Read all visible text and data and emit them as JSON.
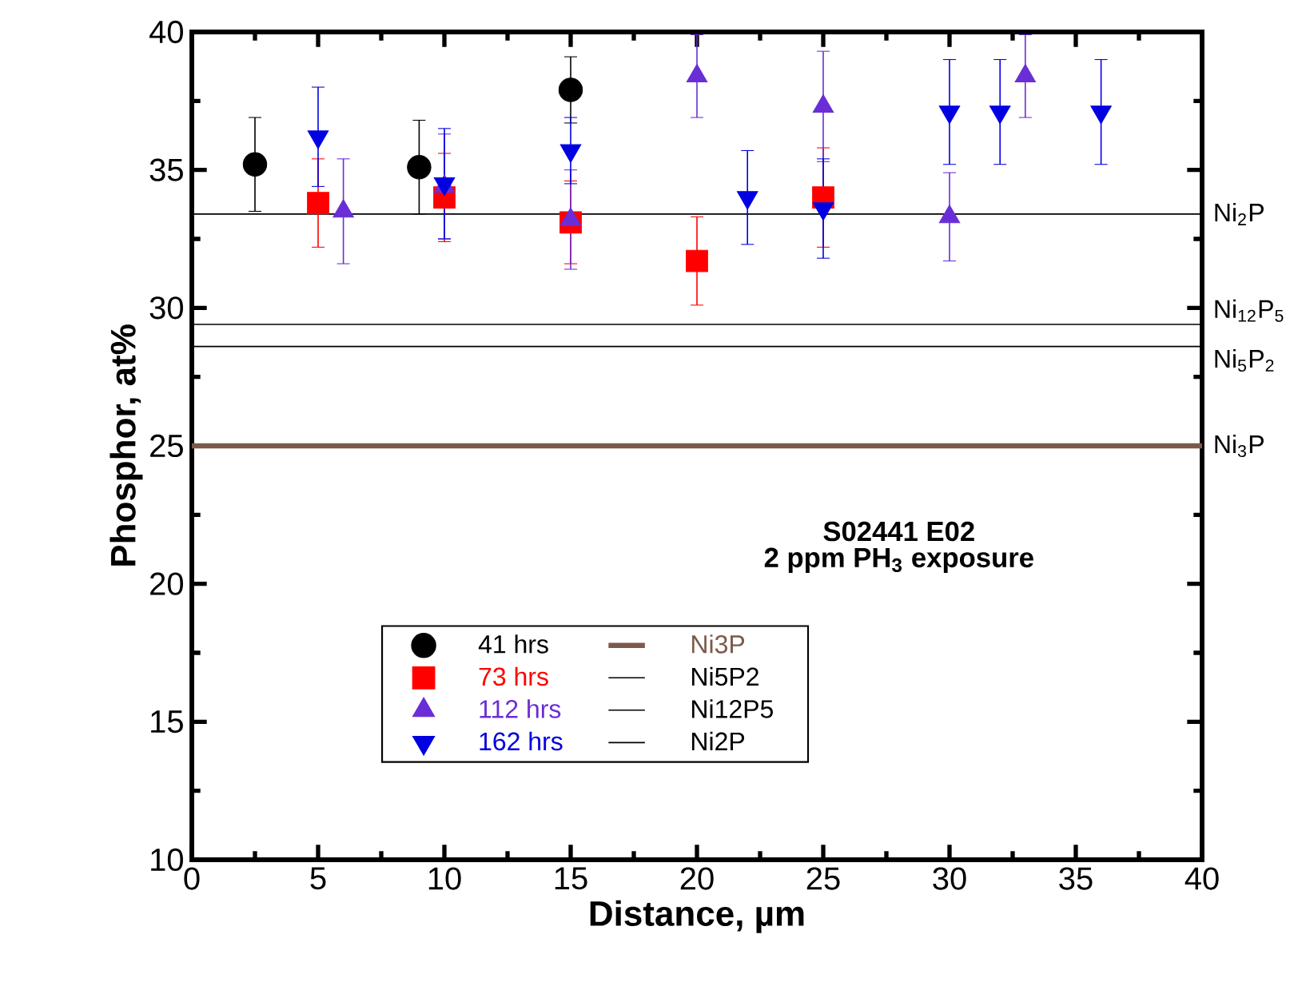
{
  "chart_data": {
    "type": "scatter",
    "xlabel": "Distance, µm",
    "ylabel": "Phosphor, at%",
    "xlim": [
      0,
      40
    ],
    "ylim": [
      10,
      40
    ],
    "xticks": [
      0,
      5,
      10,
      15,
      20,
      25,
      30,
      35,
      40
    ],
    "yticks": [
      10,
      15,
      20,
      25,
      30,
      35,
      40
    ],
    "legend": "bottom",
    "series": [
      {
        "name": "Ni3P",
        "type": "line",
        "color": "#7b5a4a",
        "x": [
          0,
          40
        ],
        "values": [
          25,
          25
        ]
      },
      {
        "name": "Ni5P2",
        "type": "line",
        "color": "#000000",
        "x": [
          0,
          40
        ],
        "values": [
          28.6,
          28.6
        ]
      },
      {
        "name": "Ni12P5",
        "type": "line",
        "color": "#000000",
        "x": [
          0,
          40
        ],
        "values": [
          29.4,
          29.4
        ]
      },
      {
        "name": "Ni2P",
        "type": "line",
        "color": "#000000",
        "x": [
          0,
          40
        ],
        "values": [
          33.4,
          33.4
        ]
      },
      {
        "name": "41 hrs",
        "marker": "circle",
        "color": "#000000",
        "x": [
          2.5,
          9,
          15
        ],
        "values": [
          35.2,
          35.1,
          37.9
        ],
        "errors": [
          1.7,
          1.7,
          1.2
        ]
      },
      {
        "name": "73 hrs",
        "marker": "square",
        "color": "#ff0000",
        "x": [
          5,
          10,
          15,
          20,
          25
        ],
        "values": [
          33.8,
          34.0,
          33.1,
          31.7,
          34.0
        ],
        "errors": [
          1.6,
          1.6,
          1.5,
          1.6,
          1.8
        ]
      },
      {
        "name": "112 hrs",
        "marker": "triangle",
        "color": "#6a2ed6",
        "x": [
          6,
          10,
          15,
          20,
          25,
          30,
          33
        ],
        "values": [
          33.5,
          34.4,
          33.2,
          38.4,
          37.3,
          33.3,
          38.4
        ],
        "errors": [
          1.9,
          1.9,
          1.8,
          1.5,
          2.0,
          1.6,
          1.5
        ]
      },
      {
        "name": "162 hrs",
        "marker": "triangle-down",
        "color": "#0000e0",
        "x": [
          5,
          10,
          15,
          22,
          25,
          30,
          32,
          36
        ],
        "values": [
          36.2,
          34.5,
          35.7,
          34.0,
          33.6,
          37.1,
          37.1,
          37.1
        ],
        "errors": [
          1.8,
          2.0,
          1.2,
          1.7,
          1.8,
          1.9,
          1.9,
          1.9
        ]
      }
    ],
    "annotations": [
      "S02441 E02",
      "2 ppm PH$_{3}$ exposure",
      "Ni$_{3}$P",
      "Ni$_{5}$P$_{2}$",
      "Ni$_{12}$P$_{5}$",
      "Ni$_{2}$P"
    ]
  }
}
